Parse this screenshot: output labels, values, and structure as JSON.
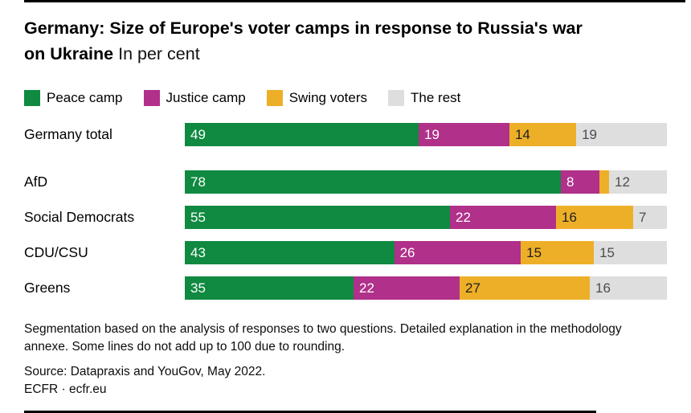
{
  "header": {
    "title_line1": "Germany: Size of Europe's voter camps in response to Russia's war",
    "title_line2_bold": "on Ukraine",
    "title_line2_suffix": " In per cent"
  },
  "legend": [
    {
      "label": "Peace camp",
      "color": "#0f8a40"
    },
    {
      "label": "Justice camp",
      "color": "#b0308a"
    },
    {
      "label": "Swing voters",
      "color": "#eeaf28"
    },
    {
      "label": "The rest",
      "color": "#dedede"
    }
  ],
  "chart_data": {
    "type": "bar",
    "orientation": "horizontal-stacked",
    "unit": "per cent",
    "xlim": [
      0,
      100
    ],
    "grid": false,
    "legend_position": "top",
    "categories": [
      "Germany total",
      "AfD",
      "Social Democrats",
      "CDU/CSU",
      "Greens"
    ],
    "series": [
      {
        "name": "Peace camp",
        "color": "#0f8a40",
        "label_color": "#ffffff",
        "values": [
          49,
          78,
          55,
          43,
          35
        ]
      },
      {
        "name": "Justice camp",
        "color": "#b0308a",
        "label_color": "#ffffff",
        "values": [
          19,
          8,
          22,
          26,
          22
        ]
      },
      {
        "name": "Swing voters",
        "color": "#eeaf28",
        "label_color": "#1f1f1f",
        "values": [
          14,
          2,
          16,
          15,
          27
        ]
      },
      {
        "name": "The rest",
        "color": "#dedede",
        "label_color": "#4d4d4d",
        "values": [
          19,
          12,
          7,
          15,
          16
        ]
      }
    ],
    "value_labels": [
      [
        "49",
        "19",
        "14",
        "19"
      ],
      [
        "78",
        "8",
        "",
        "12"
      ],
      [
        "55",
        "22",
        "16",
        "7"
      ],
      [
        "43",
        "26",
        "15",
        "15"
      ],
      [
        "35",
        "22",
        "27",
        "16"
      ]
    ],
    "note": "Some lines do not add up to 100 due to rounding."
  },
  "footer": {
    "note_line1": "Segmentation based on the analysis of responses to two questions. Detailed explanation in the methodology",
    "note_line2": "annexe. Some lines do not add up to 100 due to rounding.",
    "source": "Source: Datapraxis and YouGov, May 2022.",
    "brand": "ECFR · ecfr.eu"
  }
}
